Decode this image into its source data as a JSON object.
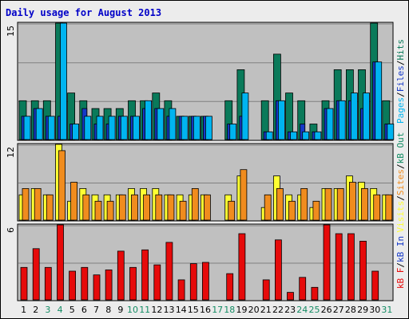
{
  "page": {
    "title": "Daily usage for August 2013"
  },
  "colors": {
    "hits": "#0a7a5a",
    "files": "#1438c8",
    "pages": "#00b4f0",
    "visits": "#ffff32",
    "sites": "#f08c1e",
    "kb_in": "#e60a0a",
    "kb_out": "#148c64",
    "weekend": "#148c64",
    "weekday": "#000000",
    "panel_bg": "#c0c0c0",
    "grid": "#808080"
  },
  "chart_data": [
    {
      "type": "bar",
      "name_key": "top",
      "ymax_label": "15",
      "ylim": [
        0,
        15
      ],
      "categories": [
        "1",
        "2",
        "3",
        "4",
        "5",
        "6",
        "7",
        "8",
        "9",
        "10",
        "11",
        "12",
        "13",
        "14",
        "15",
        "16",
        "17",
        "18",
        "19",
        "20",
        "21",
        "22",
        "23",
        "24",
        "25",
        "26",
        "27",
        "28",
        "29",
        "30",
        "31"
      ],
      "weekend_days": [
        "3",
        "4",
        "10",
        "11",
        "17",
        "18",
        "24",
        "25",
        "31"
      ],
      "series": [
        {
          "name": "Hits",
          "color_key": "hits",
          "values": [
            5,
            5,
            5,
            15,
            6,
            5,
            4,
            4,
            4,
            5,
            5,
            6,
            5,
            3,
            3,
            3,
            0,
            5,
            9,
            0,
            5,
            11,
            6,
            5,
            2,
            5,
            9,
            9,
            9,
            15,
            5
          ]
        },
        {
          "name": "Files",
          "color_key": "files",
          "values": [
            3,
            4,
            3,
            3,
            2,
            4,
            2,
            2,
            3,
            3,
            4,
            4,
            3,
            3,
            3,
            3,
            0,
            2,
            3,
            0,
            1,
            5,
            1,
            2,
            1,
            4,
            5,
            5,
            4,
            10,
            2
          ]
        },
        {
          "name": "Pages",
          "color_key": "pages",
          "values": [
            3,
            4,
            3,
            15,
            2,
            3,
            3,
            3,
            3,
            3,
            5,
            4,
            4,
            3,
            3,
            3,
            0,
            2,
            6,
            0,
            1,
            5,
            1,
            1,
            1,
            4,
            5,
            6,
            6,
            10,
            2
          ]
        }
      ],
      "legend": [
        {
          "text": "Pages",
          "color_key": "pages"
        },
        {
          "text": "/",
          "color_key": "weekday"
        },
        {
          "text": "Files",
          "color_key": "files"
        },
        {
          "text": "/",
          "color_key": "weekday"
        },
        {
          "text": "Hits",
          "color_key": "hits"
        }
      ]
    },
    {
      "type": "bar",
      "name_key": "middle",
      "ymax_label": "12",
      "ylim": [
        0,
        12
      ],
      "categories": [
        "1",
        "2",
        "3",
        "4",
        "5",
        "6",
        "7",
        "8",
        "9",
        "10",
        "11",
        "12",
        "13",
        "14",
        "15",
        "16",
        "17",
        "18",
        "19",
        "20",
        "21",
        "22",
        "23",
        "24",
        "25",
        "26",
        "27",
        "28",
        "29",
        "30",
        "31"
      ],
      "series": [
        {
          "name": "Visits",
          "color_key": "visits",
          "values": [
            4,
            5,
            4,
            12,
            3,
            5,
            4,
            4,
            4,
            5,
            5,
            5,
            4,
            4,
            4,
            4,
            0,
            4,
            7,
            0,
            2,
            7,
            4,
            4,
            2,
            5,
            5,
            7,
            6,
            5,
            4
          ]
        },
        {
          "name": "Sites",
          "color_key": "sites",
          "values": [
            5,
            5,
            4,
            11,
            6,
            4,
            3,
            3,
            4,
            4,
            4,
            4,
            4,
            3,
            5,
            4,
            0,
            3,
            8,
            0,
            4,
            5,
            3,
            5,
            3,
            5,
            5,
            6,
            5,
            4,
            4
          ]
        }
      ],
      "legend": [
        {
          "text": "Visits",
          "color_key": "visits"
        },
        {
          "text": "/",
          "color_key": "weekday"
        },
        {
          "text": "Sites",
          "color_key": "sites"
        },
        {
          "text": "/",
          "color_key": "weekday"
        },
        {
          "text": "kB Out",
          "color_key": "kb_out"
        }
      ]
    },
    {
      "type": "bar",
      "name_key": "bottom",
      "ymax_label": "6",
      "ylim": [
        0,
        6
      ],
      "categories": [
        "1",
        "2",
        "3",
        "4",
        "5",
        "6",
        "7",
        "8",
        "9",
        "10",
        "11",
        "12",
        "13",
        "14",
        "15",
        "16",
        "17",
        "18",
        "19",
        "20",
        "21",
        "22",
        "23",
        "24",
        "25",
        "26",
        "27",
        "28",
        "29",
        "30",
        "31"
      ],
      "series": [
        {
          "name": "kB F",
          "color_key": "kb_in",
          "values": [
            2.6,
            4.1,
            2.6,
            6.0,
            2.3,
            2.6,
            2.0,
            2.4,
            3.9,
            2.6,
            4.0,
            2.8,
            4.6,
            1.6,
            2.9,
            3.0,
            0,
            2.1,
            5.3,
            0,
            1.6,
            4.8,
            0.6,
            1.8,
            1.0,
            6.0,
            5.3,
            5.3,
            4.7,
            2.3,
            0
          ]
        }
      ],
      "legend": [
        {
          "text": "kB F",
          "color_key": "kb_in"
        },
        {
          "text": "/",
          "color_key": "weekday"
        },
        {
          "text": "kB In",
          "color_key": "files"
        }
      ]
    }
  ]
}
